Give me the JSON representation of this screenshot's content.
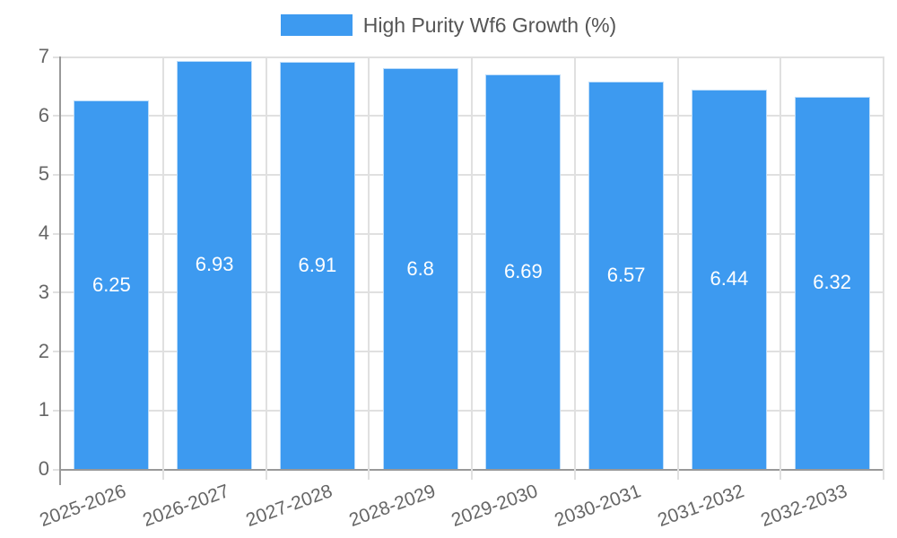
{
  "legend": {
    "label": "High Purity Wf6 Growth (%)"
  },
  "chart_data": {
    "type": "bar",
    "title": "High Purity Wf6 Growth (%)",
    "categories": [
      "2025-2026",
      "2026-2027",
      "2027-2028",
      "2028-2029",
      "2029-2030",
      "2030-2031",
      "2031-2032",
      "2032-2033"
    ],
    "values": [
      6.25,
      6.93,
      6.91,
      6.8,
      6.69,
      6.57,
      6.44,
      6.32
    ],
    "value_labels": [
      "6.25",
      "6.93",
      "6.91",
      "6.8",
      "6.69",
      "6.57",
      "6.44",
      "6.32"
    ],
    "series": [
      {
        "name": "High Purity Wf6 Growth (%)",
        "values": [
          6.25,
          6.93,
          6.91,
          6.8,
          6.69,
          6.57,
          6.44,
          6.32
        ]
      }
    ],
    "xlabel": "",
    "ylabel": "",
    "ylim": [
      0,
      7
    ],
    "y_ticks": [
      0,
      1,
      2,
      3,
      4,
      5,
      6,
      7
    ],
    "grid": true,
    "legend_position": "top",
    "colors": {
      "bar": "#3d9af0",
      "grid": "#e0e0e0",
      "axis": "#999999",
      "tick_label": "#666666",
      "legend_text": "#555555",
      "value_label": "#ffffff"
    }
  }
}
